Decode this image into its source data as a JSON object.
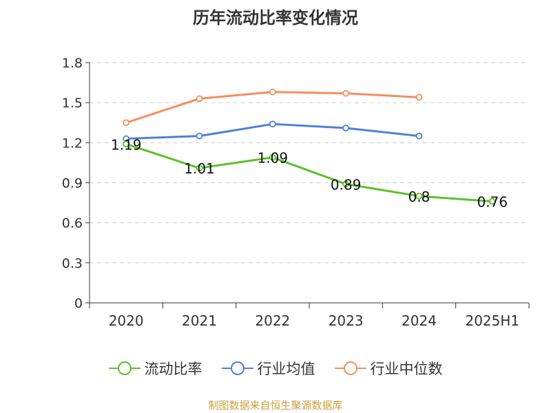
{
  "chart_data": {
    "type": "line",
    "title": "历年流动比率变化情况",
    "categories": [
      "2020",
      "2021",
      "2022",
      "2023",
      "2024",
      "2025H1"
    ],
    "ylim": [
      0,
      1.8
    ],
    "yticks": [
      "0",
      "0.3",
      "0.6",
      "0.9",
      "1.2",
      "1.5",
      "1.8"
    ],
    "grid": true,
    "legend_position": "bottom",
    "series": [
      {
        "name": "流动比率",
        "color": "#5cbf2a",
        "values": [
          1.19,
          1.01,
          1.09,
          0.89,
          0.8,
          0.76
        ],
        "labels": [
          "1.19",
          "1.01",
          "1.09",
          "0.89",
          "0.8",
          "0.76"
        ]
      },
      {
        "name": "行业均值",
        "color": "#4f7fd9",
        "values": [
          1.23,
          1.25,
          1.34,
          1.31,
          1.25,
          null
        ]
      },
      {
        "name": "行业中位数",
        "color": "#f58d5c",
        "values": [
          1.35,
          1.53,
          1.58,
          1.57,
          1.54,
          null
        ]
      }
    ]
  },
  "source_note": "制图数据来自恒生聚源数据库"
}
